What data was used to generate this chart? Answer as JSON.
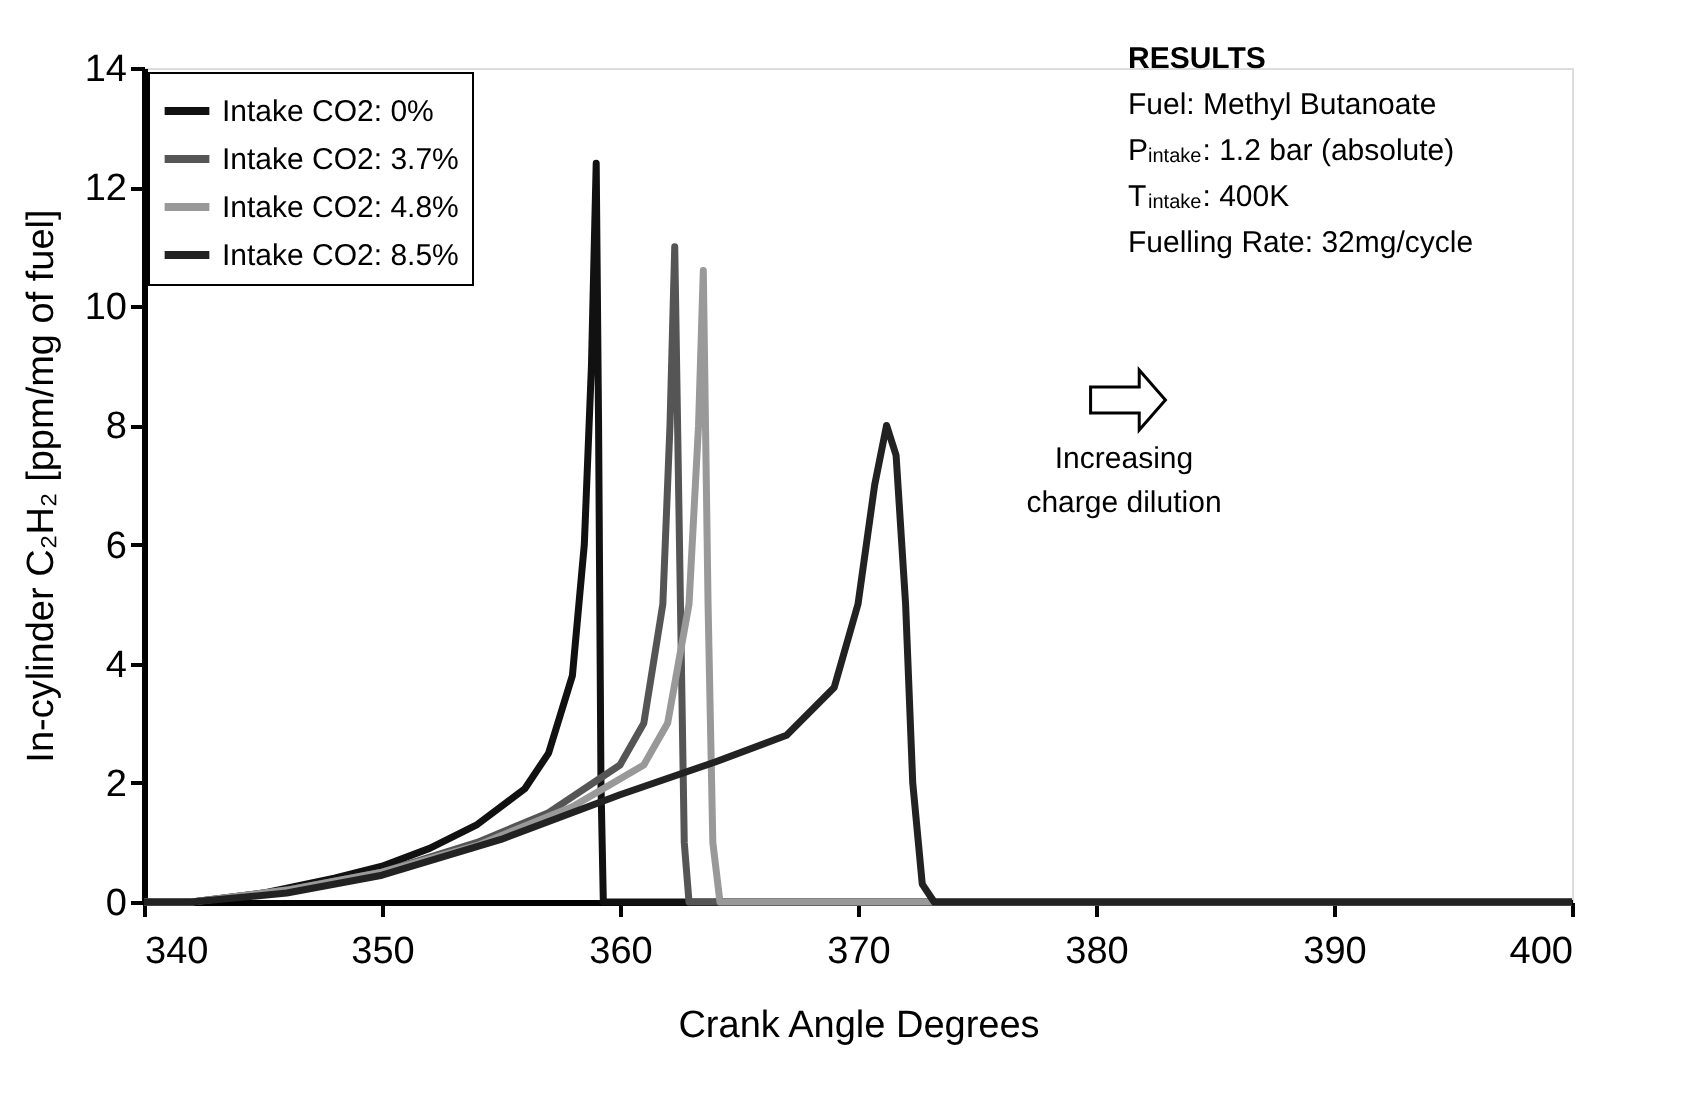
{
  "chart_data": {
    "type": "line",
    "xlabel": "Crank Angle Degrees",
    "ylabel": "In-cylinder C₂H₂ [ppm/mg of fuel]",
    "xlim": [
      340,
      400
    ],
    "xticks": [
      340,
      350,
      360,
      370,
      380,
      390,
      400
    ],
    "ylim": [
      0,
      14
    ],
    "yticks": [
      0,
      2,
      4,
      6,
      8,
      10,
      12,
      14
    ],
    "grid": false,
    "legend": "top left",
    "marker": "none",
    "line_style": "solid",
    "annotations": [
      "RESULTS",
      "Fuel: Methyl Butanoate",
      "P$_{intake}$: 1.2 bar (absolute)",
      "T$_{intake}$: 400K",
      "Fuelling Rate: 32mg/cycle",
      "Increasing charge dilution"
    ],
    "series": [
      {
        "name": "Intake CO2: 0%",
        "color": "#111111",
        "x": [
          340,
          342,
          345,
          348,
          350,
          352,
          354,
          356,
          357,
          358,
          358.5,
          358.8,
          359,
          359.1,
          359.2,
          359.3,
          400
        ],
        "values": [
          0,
          0,
          0.15,
          0.4,
          0.6,
          0.9,
          1.3,
          1.9,
          2.5,
          3.8,
          6,
          9,
          12.4,
          8,
          2,
          0,
          0
        ]
      },
      {
        "name": "Intake CO2: 3.7%",
        "color": "#555555",
        "x": [
          340,
          342,
          346,
          350,
          354,
          357,
          360,
          361,
          361.8,
          362.1,
          362.3,
          362.5,
          362.7,
          362.9,
          400
        ],
        "values": [
          0,
          0,
          0.2,
          0.5,
          1.0,
          1.5,
          2.3,
          3.0,
          5,
          8,
          11.0,
          6,
          1,
          0,
          0
        ]
      },
      {
        "name": "Intake CO2: 4.8%",
        "color": "#999999",
        "x": [
          340,
          342,
          346,
          350,
          354,
          358,
          361,
          362,
          362.9,
          363.3,
          363.5,
          363.7,
          363.9,
          364.2,
          400
        ],
        "values": [
          0,
          0,
          0.2,
          0.5,
          0.95,
          1.6,
          2.3,
          3,
          5,
          8,
          10.6,
          5,
          1,
          0,
          0
        ]
      },
      {
        "name": "Intake CO2: 8.5%",
        "color": "#222222",
        "x": [
          340,
          342,
          346,
          350,
          355,
          360,
          364,
          367,
          369,
          370,
          370.7,
          371.2,
          371.6,
          372,
          372.3,
          372.7,
          373.2,
          400
        ],
        "values": [
          0,
          0,
          0.15,
          0.45,
          1.05,
          1.8,
          2.35,
          2.8,
          3.6,
          5,
          7,
          8.0,
          7.5,
          5,
          2,
          0.3,
          0,
          0
        ]
      }
    ]
  }
}
